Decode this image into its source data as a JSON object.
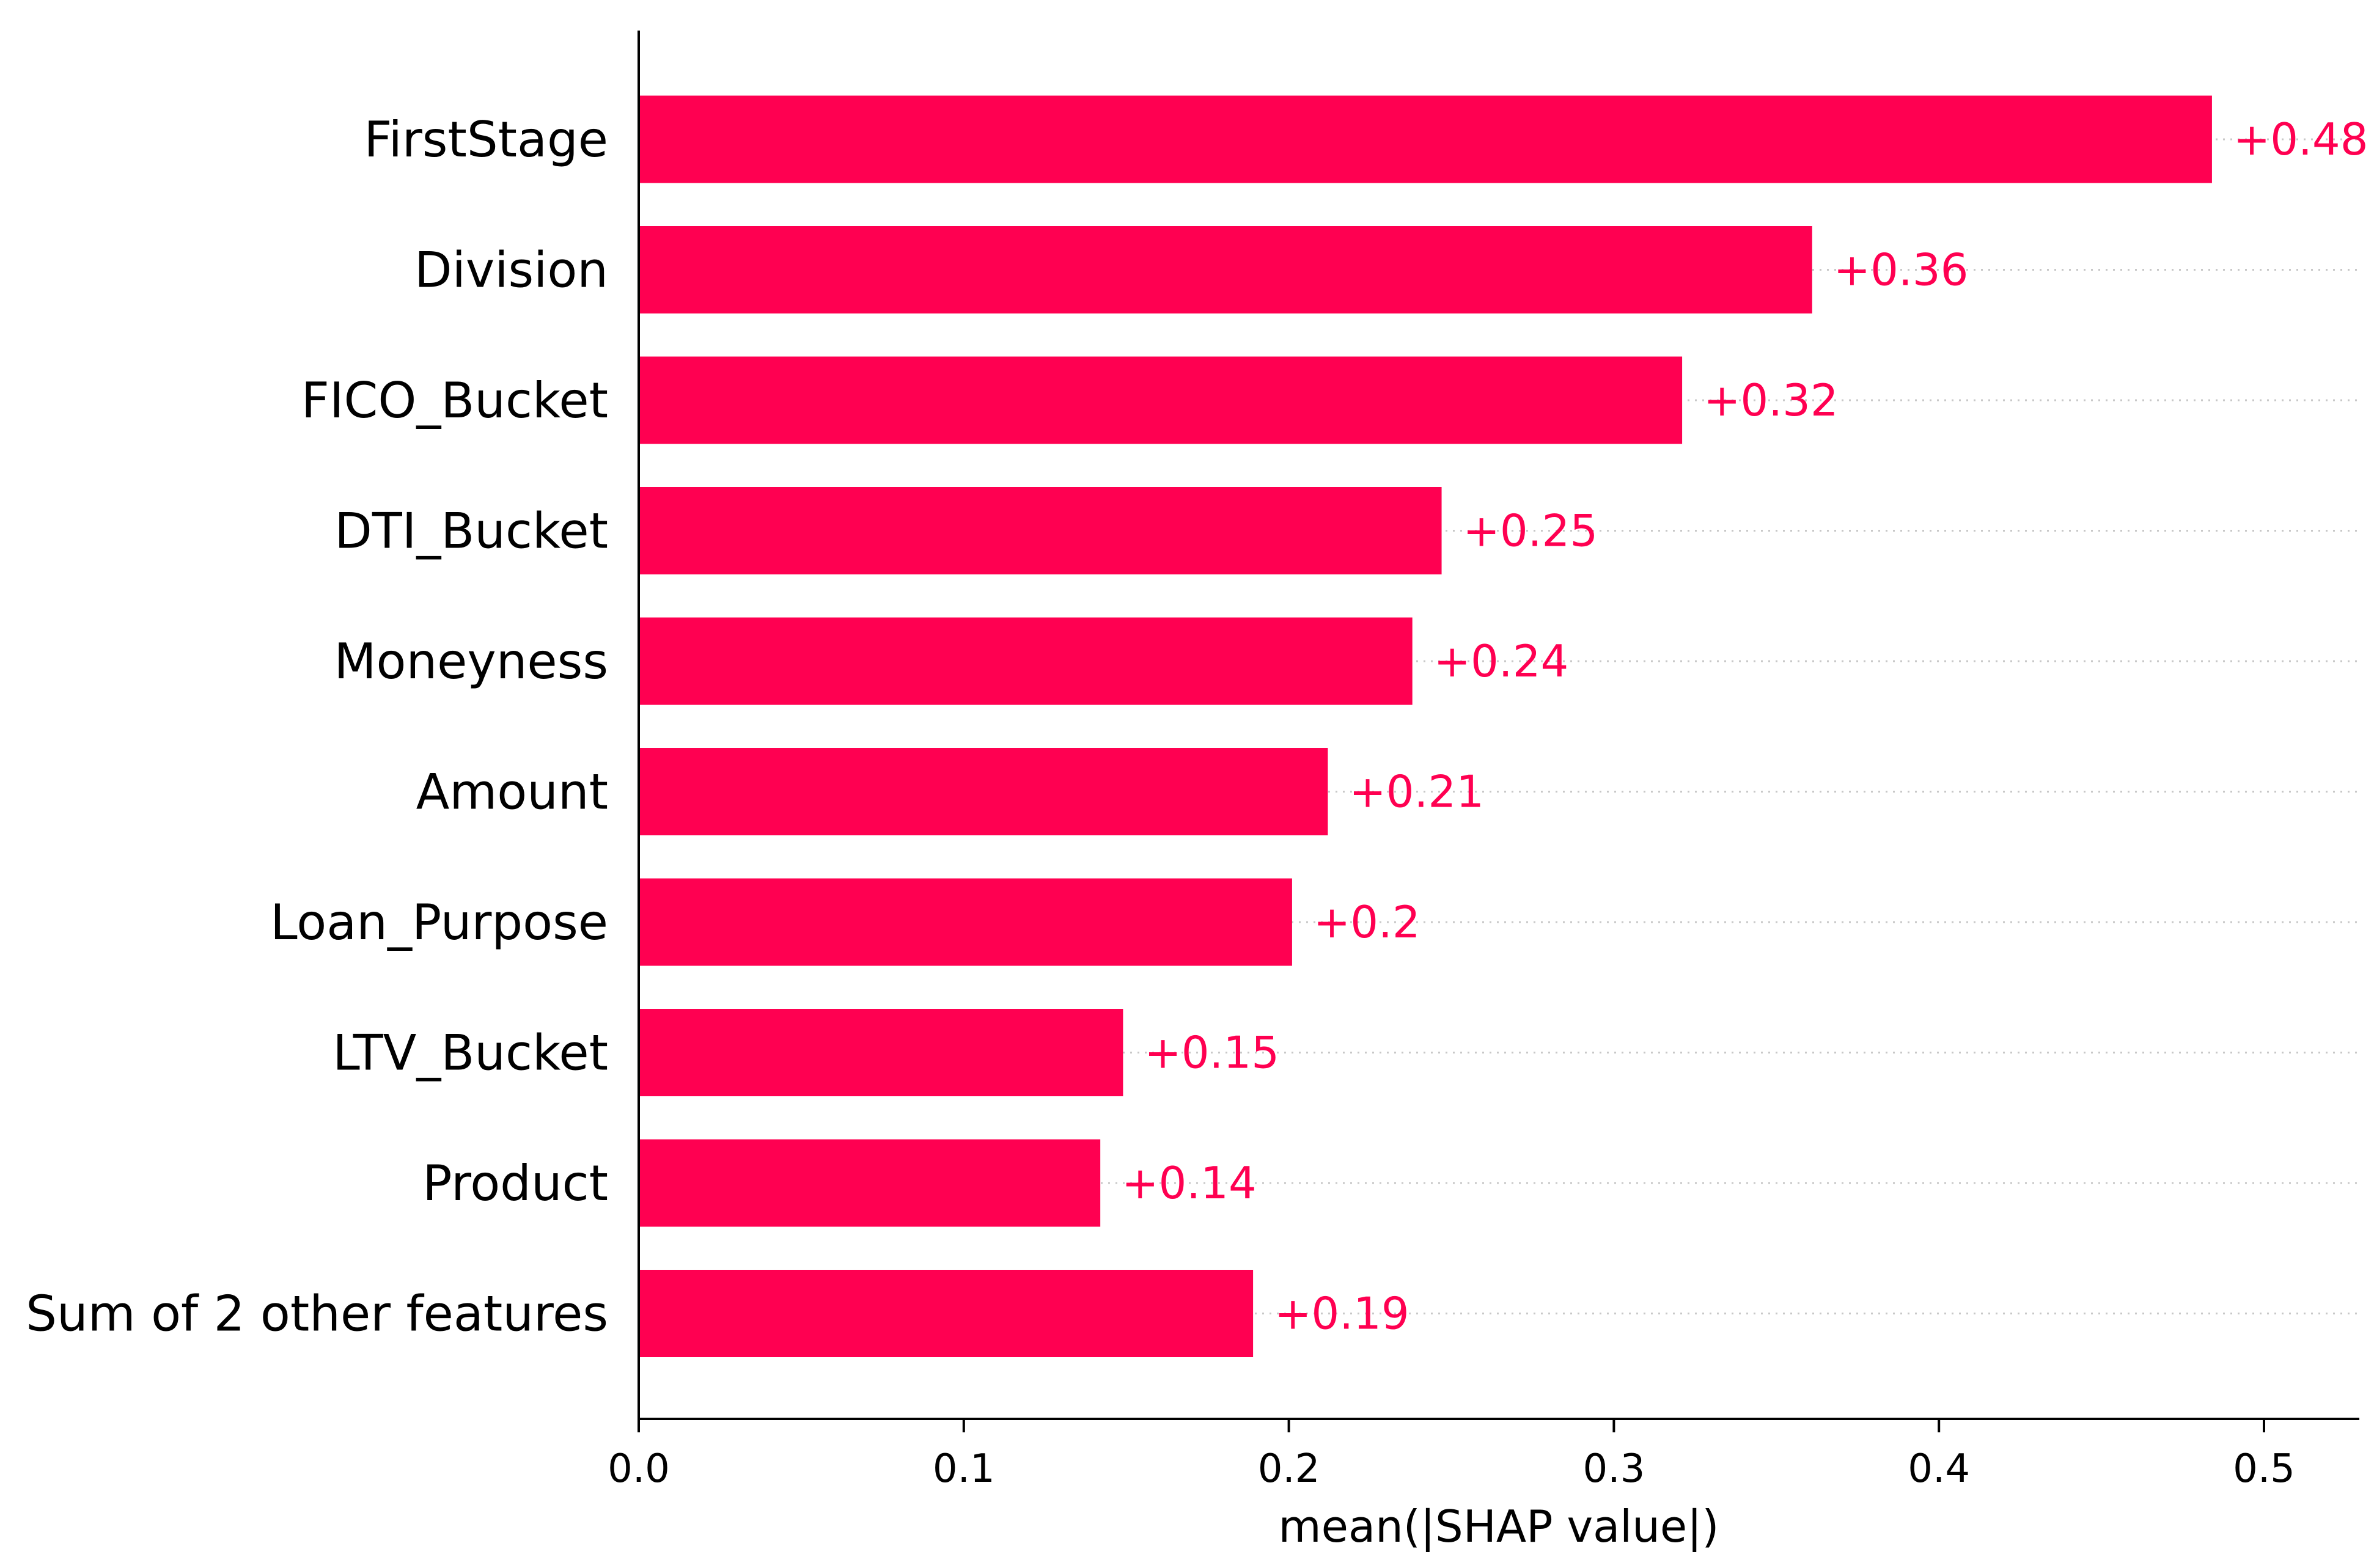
{
  "chart_data": {
    "type": "bar",
    "orientation": "horizontal",
    "title": "",
    "xlabel": "mean(|SHAP value|)",
    "ylabel": "",
    "xlim": [
      0,
      0.53
    ],
    "x_ticks": [
      0.0,
      0.1,
      0.2,
      0.3,
      0.4,
      0.5
    ],
    "x_tick_labels": [
      "0.0",
      "0.1",
      "0.2",
      "0.3",
      "0.4",
      "0.5"
    ],
    "grid": "dotted horizontal guide lines per bar",
    "legend": "none",
    "bar_color": "#ff0051",
    "categories": [
      "FirstStage",
      "Division",
      "FICO_Bucket",
      "DTI_Bucket",
      "Moneyness",
      "Amount",
      "Loan_Purpose",
      "LTV_Bucket",
      "Product",
      "Sum of 2 other features"
    ],
    "values": [
      0.484,
      0.361,
      0.321,
      0.247,
      0.238,
      0.212,
      0.201,
      0.149,
      0.142,
      0.189
    ],
    "value_labels": [
      "+0.48",
      "+0.36",
      "+0.32",
      "+0.25",
      "+0.24",
      "+0.21",
      "+0.2",
      "+0.15",
      "+0.14",
      "+0.19"
    ]
  }
}
